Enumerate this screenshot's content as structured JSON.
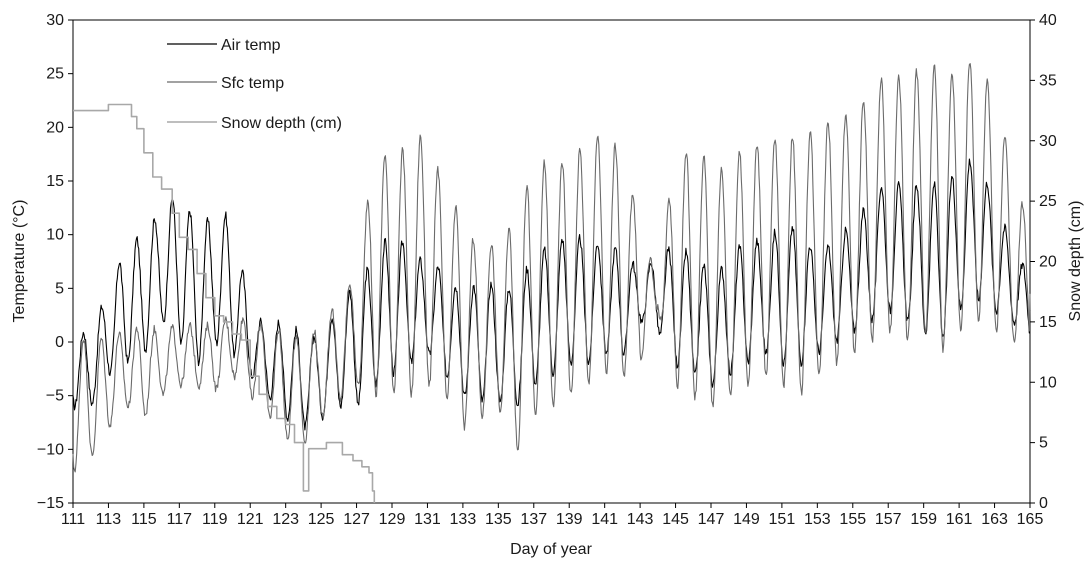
{
  "chart_data": {
    "type": "line",
    "xlabel": "Day of year",
    "ylabel_left": "Temperature (°C)",
    "ylabel_right": "Snow depth (cm)",
    "xlim": [
      111,
      165
    ],
    "ylim_left": [
      -15,
      30
    ],
    "ylim_right": [
      0,
      40
    ],
    "x_ticks": [
      111,
      113,
      115,
      117,
      119,
      121,
      123,
      125,
      127,
      129,
      131,
      133,
      135,
      137,
      139,
      141,
      143,
      145,
      147,
      149,
      151,
      153,
      155,
      157,
      159,
      161,
      163,
      165
    ],
    "y_ticks_left": [
      -15,
      -10,
      -5,
      0,
      5,
      10,
      15,
      20,
      25,
      30
    ],
    "y_ticks_right": [
      0,
      5,
      10,
      15,
      20,
      25,
      30,
      35,
      40
    ],
    "grid": false,
    "legend_position": "top-left",
    "series": [
      {
        "name": "Air temp",
        "axis": "left",
        "color": "#000000",
        "daily": [
          [
            111,
            -6,
            1.5
          ],
          [
            112,
            -6,
            0.5
          ],
          [
            113,
            -3,
            5
          ],
          [
            114,
            -2,
            9
          ],
          [
            115,
            -1,
            10
          ],
          [
            116,
            2,
            12.5
          ],
          [
            117,
            0,
            14
          ],
          [
            118,
            -2,
            11
          ],
          [
            119,
            0,
            11.5
          ],
          [
            120,
            -1,
            12
          ],
          [
            121,
            -3,
            2.5
          ],
          [
            122,
            -5,
            1.5
          ],
          [
            123,
            -7,
            2
          ],
          [
            124,
            -8,
            0.5
          ],
          [
            125,
            -7,
            0.5
          ],
          [
            126,
            -6,
            3.5
          ],
          [
            127,
            -6,
            5.5
          ],
          [
            128,
            -4,
            7.5
          ],
          [
            129,
            -3,
            10.5
          ],
          [
            130,
            -2,
            8.5
          ],
          [
            131,
            -1,
            7
          ],
          [
            132,
            -3,
            7
          ],
          [
            133,
            -5,
            4
          ],
          [
            134,
            -5.5,
            6
          ],
          [
            135,
            -5.5,
            5
          ],
          [
            136,
            -6,
            5
          ],
          [
            137,
            -4,
            8
          ],
          [
            138,
            -3,
            9
          ],
          [
            139,
            -2,
            10
          ],
          [
            140,
            -2,
            9.5
          ],
          [
            141,
            -1,
            9
          ],
          [
            142,
            -1.5,
            8.5
          ],
          [
            143,
            2,
            6.5
          ],
          [
            144,
            1,
            8
          ],
          [
            145,
            -2,
            9
          ],
          [
            146,
            -3,
            8
          ],
          [
            147,
            -4,
            6.5
          ],
          [
            148,
            -3,
            7
          ],
          [
            149,
            -2,
            10
          ],
          [
            150,
            -1,
            9
          ],
          [
            151,
            -2,
            11
          ],
          [
            152,
            -2,
            10.5
          ],
          [
            153,
            -1,
            8
          ],
          [
            154,
            0,
            9.5
          ],
          [
            155,
            1,
            11
          ],
          [
            156,
            2,
            13
          ],
          [
            157,
            3,
            15.5
          ],
          [
            158,
            2,
            14
          ],
          [
            159,
            1,
            15
          ],
          [
            160,
            0,
            14.5
          ],
          [
            161,
            3,
            16
          ],
          [
            162,
            4,
            17.5
          ],
          [
            163,
            3,
            13
          ],
          [
            164,
            2,
            9
          ],
          [
            165,
            0,
            6
          ]
        ]
      },
      {
        "name": "Sfc temp",
        "axis": "left",
        "color": "#6b6b6b",
        "daily": [
          [
            111,
            -12,
            1
          ],
          [
            112,
            -11,
            0
          ],
          [
            113,
            -8,
            0.5
          ],
          [
            114,
            -6,
            1
          ],
          [
            115,
            -7,
            1.5
          ],
          [
            116,
            -5,
            1
          ],
          [
            117,
            -4,
            1.5
          ],
          [
            118,
            -4,
            1.5
          ],
          [
            119,
            -4.5,
            1.5
          ],
          [
            120,
            -3,
            2.5
          ],
          [
            121,
            -5,
            2
          ],
          [
            122,
            -7,
            1.5
          ],
          [
            123,
            -9,
            1
          ],
          [
            124,
            -9.5,
            0.5
          ],
          [
            125,
            -7,
            1.5
          ],
          [
            126,
            -5.5,
            4
          ],
          [
            127,
            -4,
            6.5
          ],
          [
            128,
            -5,
            17.5
          ],
          [
            129,
            -4.5,
            17.5
          ],
          [
            130,
            -5,
            18
          ],
          [
            131,
            -4,
            20
          ],
          [
            132,
            -5,
            13.5
          ],
          [
            133,
            -8,
            12
          ],
          [
            134,
            -7,
            8
          ],
          [
            135,
            -6,
            10
          ],
          [
            136,
            -10.5,
            11
          ],
          [
            137,
            -7,
            17
          ],
          [
            138,
            -6,
            16.5
          ],
          [
            139,
            -5,
            17
          ],
          [
            140,
            -4,
            18.5
          ],
          [
            141,
            -3,
            19.5
          ],
          [
            142,
            -3.5,
            17.5
          ],
          [
            143,
            -2,
            11.5
          ],
          [
            144,
            3,
            5
          ],
          [
            145,
            -4,
            18
          ],
          [
            146,
            -5,
            17.5
          ],
          [
            147,
            -6,
            17
          ],
          [
            148,
            -5,
            15.5
          ],
          [
            149,
            -4,
            19
          ],
          [
            150,
            -3,
            18
          ],
          [
            151,
            -4,
            19.5
          ],
          [
            152,
            -5,
            19
          ],
          [
            153,
            -3,
            20
          ],
          [
            154,
            -2,
            21
          ],
          [
            155,
            -1,
            21.5
          ],
          [
            156,
            0,
            23
          ],
          [
            157,
            1,
            25.5
          ],
          [
            158,
            0,
            24
          ],
          [
            159,
            1,
            26
          ],
          [
            160,
            -1,
            25.5
          ],
          [
            161,
            1,
            25
          ],
          [
            162,
            2,
            27
          ],
          [
            163,
            1,
            22.5
          ],
          [
            164,
            0,
            17
          ],
          [
            165,
            -1,
            10
          ]
        ]
      },
      {
        "name": "Snow depth (cm)",
        "axis": "right",
        "color": "#a8a8a8",
        "x": [
          111,
          112,
          113,
          113.5,
          114,
          114.3,
          114.6,
          115,
          115.5,
          116,
          116.6,
          117,
          117.5,
          118,
          118.5,
          119,
          119.5,
          120,
          120.5,
          121,
          121.5,
          122,
          122.5,
          123,
          123.5,
          124,
          124.3,
          124.8,
          125.3,
          125.8,
          126.2,
          126.8,
          127.3,
          127.7,
          127.9,
          128
        ],
        "values": [
          32.5,
          32.5,
          33,
          33,
          33,
          32,
          31,
          29,
          27,
          26,
          24,
          22,
          21,
          19,
          17,
          15.5,
          15,
          14,
          13.5,
          10.5,
          9,
          8,
          7,
          6.5,
          5,
          1,
          4.5,
          4.5,
          5,
          5,
          4,
          3.5,
          3,
          2.5,
          1,
          0
        ]
      }
    ]
  }
}
